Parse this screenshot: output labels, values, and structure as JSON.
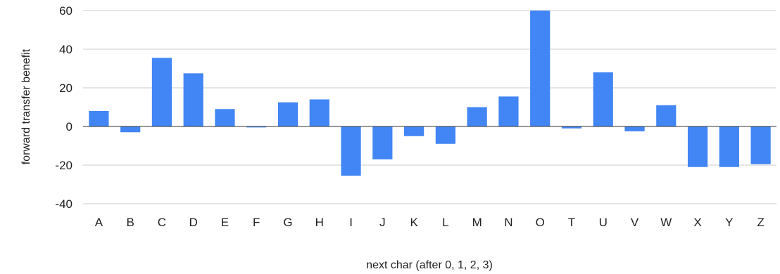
{
  "chart_data": {
    "type": "bar",
    "categories": [
      "A",
      "B",
      "C",
      "D",
      "E",
      "F",
      "G",
      "H",
      "I",
      "J",
      "K",
      "L",
      "M",
      "N",
      "O",
      "T",
      "U",
      "V",
      "W",
      "X",
      "Y",
      "Z"
    ],
    "series": [
      {
        "values": [
          8,
          -3,
          35.5,
          27.5,
          9,
          -0.5,
          12.5,
          14,
          -25.5,
          -17,
          -5,
          -9,
          10,
          15.5,
          60,
          -1,
          28,
          -2.5,
          11,
          -21,
          -21,
          -19.5
        ],
        "color": "#4285f4"
      }
    ],
    "title": "",
    "xlabel": "next char (after 0, 1, 2, 3)",
    "ylabel": "forward transfer benefit",
    "ylim": [
      -40,
      60
    ],
    "yticks": [
      -40,
      -20,
      0,
      20,
      40,
      60
    ],
    "grid": true,
    "legend": "none"
  }
}
